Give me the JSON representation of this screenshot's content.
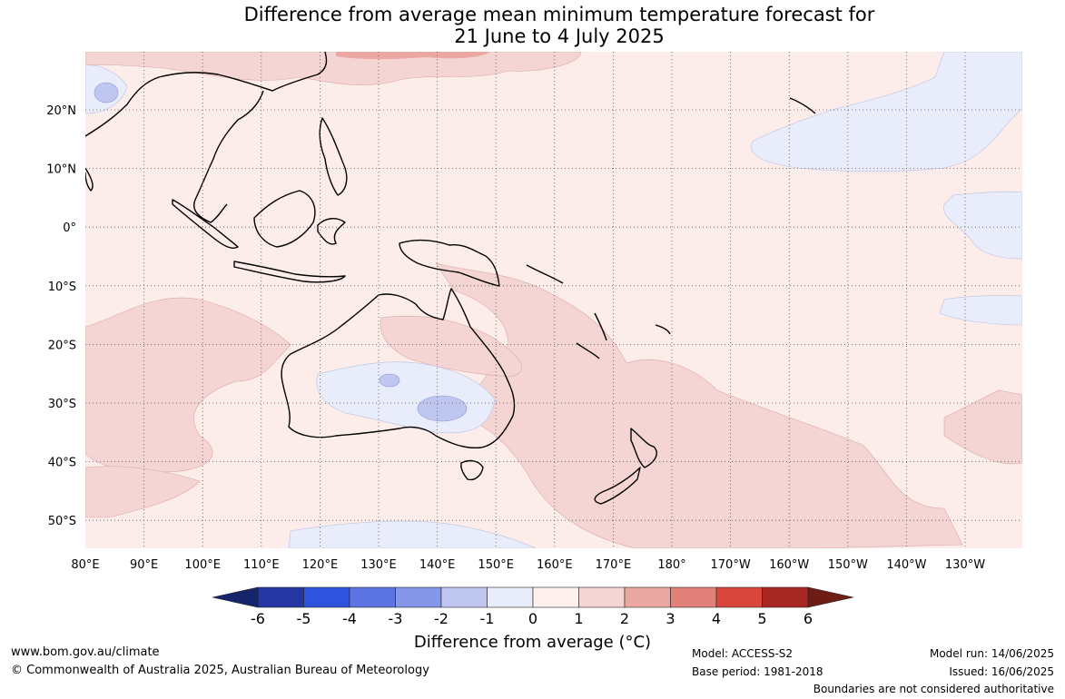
{
  "title": {
    "line1": "Difference from average mean minimum temperature forecast for",
    "line2": "21 June to 4 July 2025"
  },
  "map": {
    "lon_labels": [
      "80°E",
      "90°E",
      "100°E",
      "110°E",
      "120°E",
      "130°E",
      "140°E",
      "150°E",
      "160°E",
      "170°E",
      "180°",
      "170°W",
      "160°W",
      "150°W",
      "140°W",
      "130°W"
    ],
    "lat_labels": [
      "20°N",
      "10°N",
      "0°",
      "10°S",
      "20°S",
      "30°S",
      "40°S",
      "50°S"
    ]
  },
  "colorbar": {
    "title": "Difference from average (°C)",
    "ticks": [
      "-6",
      "-5",
      "-4",
      "-3",
      "-2",
      "-1",
      "0",
      "1",
      "2",
      "3",
      "4",
      "5",
      "6"
    ],
    "colors": [
      "#2637a3",
      "#2e53dc",
      "#5b74e2",
      "#8597e6",
      "#bfc6f0",
      "#e9edfb",
      "#fdf0ee",
      "#f5d5d3",
      "#eba8a3",
      "#e2807a",
      "#d9463c",
      "#a82823"
    ],
    "extend_low_color": "#16246b",
    "extend_high_color": "#6e1d16"
  },
  "footer": {
    "website": "www.bom.gov.au/climate",
    "copyright": "© Commonwealth of Australia 2025, Australian Bureau of Meteorology",
    "model": "Model: ACCESS-S2",
    "base_period": "Base period: 1981-2018",
    "model_run": "Model run: 14/06/2025",
    "issued": "Issued: 16/06/2025",
    "disclaimer": "Boundaries are not considered authoritative"
  }
}
